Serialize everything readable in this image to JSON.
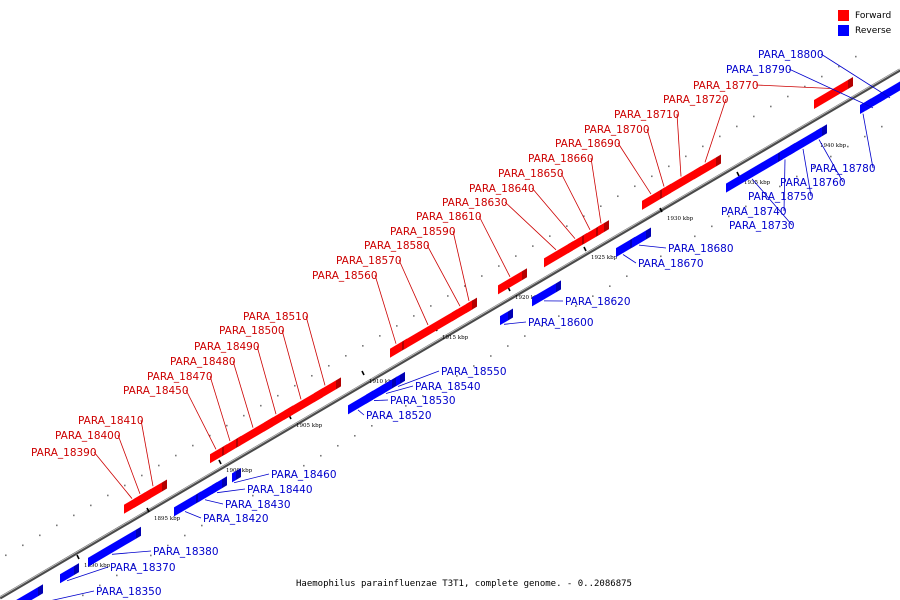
{
  "legend": [
    {
      "label": "Forward",
      "color": "#ff0000"
    },
    {
      "label": "Reverse",
      "color": "#0000ff"
    }
  ],
  "caption": "Haemophilus parainfluenzae T3T1, complete genome. - 0..2086875",
  "colors": {
    "forward": "#ff0000",
    "reverse": "#0000ff",
    "forward_label": "#cc0000",
    "reverse_label": "#0000cc",
    "axis": "#999999"
  },
  "axis": {
    "ticks": [
      "1890 kbp",
      "1895 kbp",
      "1900 kbp",
      "1905 kbp",
      "1910 kbp",
      "1915 kbp",
      "1920 kbp",
      "1925 kbp",
      "1930 kbp",
      "1935 kbp",
      "1940 kbp"
    ]
  },
  "genes": [
    {
      "id": "PARA_18350",
      "strand": "reverse"
    },
    {
      "id": "PARA_18370",
      "strand": "reverse"
    },
    {
      "id": "PARA_18380",
      "strand": "reverse"
    },
    {
      "id": "PARA_18390",
      "strand": "forward"
    },
    {
      "id": "PARA_18400",
      "strand": "forward"
    },
    {
      "id": "PARA_18410",
      "strand": "forward"
    },
    {
      "id": "PARA_18420",
      "strand": "reverse"
    },
    {
      "id": "PARA_18430",
      "strand": "reverse"
    },
    {
      "id": "PARA_18440",
      "strand": "reverse"
    },
    {
      "id": "PARA_18450",
      "strand": "forward"
    },
    {
      "id": "PARA_18460",
      "strand": "reverse"
    },
    {
      "id": "PARA_18470",
      "strand": "forward"
    },
    {
      "id": "PARA_18480",
      "strand": "forward"
    },
    {
      "id": "PARA_18490",
      "strand": "forward"
    },
    {
      "id": "PARA_18500",
      "strand": "forward"
    },
    {
      "id": "PARA_18510",
      "strand": "forward"
    },
    {
      "id": "PARA_18520",
      "strand": "reverse"
    },
    {
      "id": "PARA_18530",
      "strand": "reverse"
    },
    {
      "id": "PARA_18540",
      "strand": "reverse"
    },
    {
      "id": "PARA_18550",
      "strand": "reverse"
    },
    {
      "id": "PARA_18560",
      "strand": "forward"
    },
    {
      "id": "PARA_18570",
      "strand": "forward"
    },
    {
      "id": "PARA_18580",
      "strand": "forward"
    },
    {
      "id": "PARA_18590",
      "strand": "forward"
    },
    {
      "id": "PARA_18600",
      "strand": "reverse"
    },
    {
      "id": "PARA_18610",
      "strand": "forward"
    },
    {
      "id": "PARA_18620",
      "strand": "reverse"
    },
    {
      "id": "PARA_18630",
      "strand": "forward"
    },
    {
      "id": "PARA_18640",
      "strand": "forward"
    },
    {
      "id": "PARA_18650",
      "strand": "forward"
    },
    {
      "id": "PARA_18660",
      "strand": "forward"
    },
    {
      "id": "PARA_18670",
      "strand": "reverse"
    },
    {
      "id": "PARA_18680",
      "strand": "reverse"
    },
    {
      "id": "PARA_18690",
      "strand": "forward"
    },
    {
      "id": "PARA_18700",
      "strand": "forward"
    },
    {
      "id": "PARA_18710",
      "strand": "forward"
    },
    {
      "id": "PARA_18720",
      "strand": "forward"
    },
    {
      "id": "PARA_18730",
      "strand": "reverse"
    },
    {
      "id": "PARA_18740",
      "strand": "reverse"
    },
    {
      "id": "PARA_18750",
      "strand": "reverse"
    },
    {
      "id": "PARA_18760",
      "strand": "reverse"
    },
    {
      "id": "PARA_18770",
      "strand": "forward"
    },
    {
      "id": "PARA_18780",
      "strand": "reverse"
    },
    {
      "id": "PARA_18790",
      "strand": "reverse"
    },
    {
      "id": "PARA_18800",
      "strand": "reverse"
    }
  ]
}
